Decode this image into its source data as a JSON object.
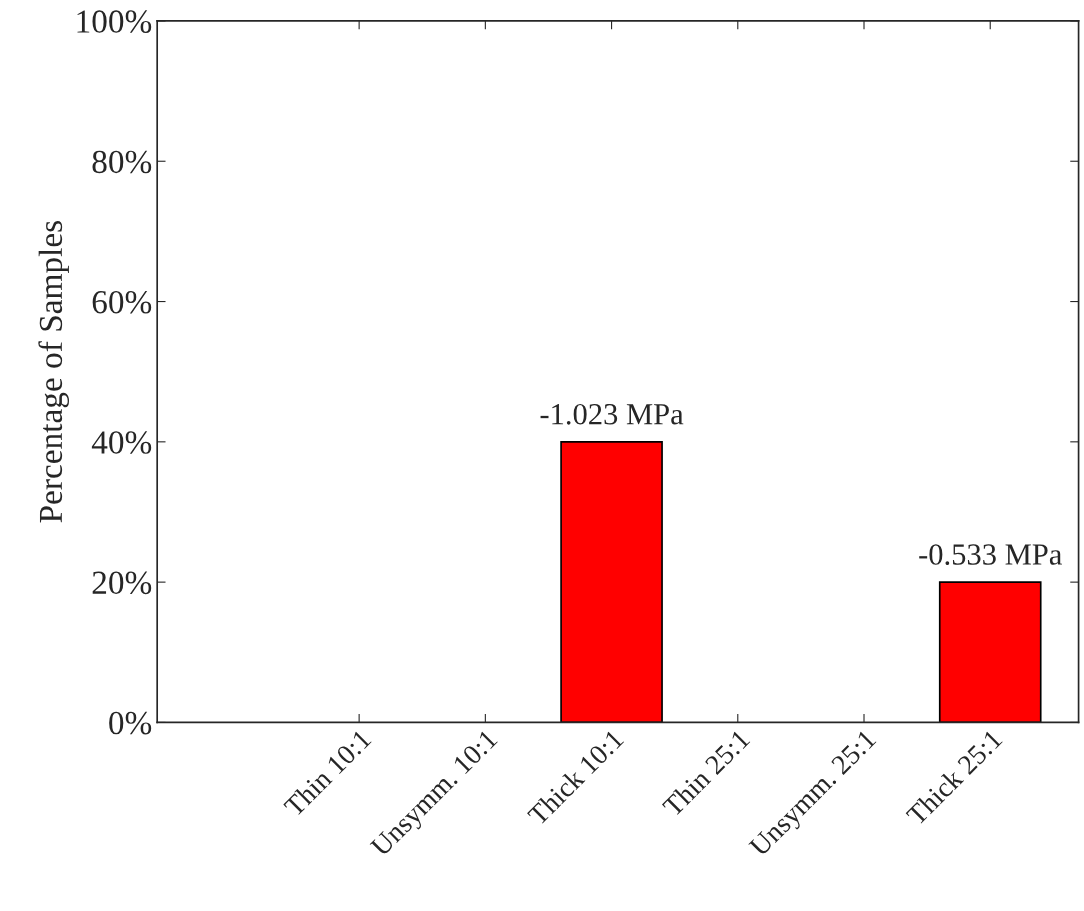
{
  "chart_data": {
    "type": "bar",
    "ylabel": "Percentage of Samples",
    "categories": [
      "Thin 10:1",
      "Unsymm. 10:1",
      "Thick 10:1",
      "Thin 25:1",
      "Unsymm. 25:1",
      "Thick 25:1"
    ],
    "values": [
      0,
      0,
      40,
      0,
      0,
      20
    ],
    "annotations": [
      {
        "text": "-1.023 MPa",
        "x": "Thick 10:1",
        "y": 40
      },
      {
        "text": "-0.533 MPa",
        "x": "Thick 25:1",
        "y": 20
      }
    ],
    "color": "#ff0000",
    "ylim": [
      0,
      100
    ],
    "yticks": [
      {
        "value": 0,
        "label": "0%"
      },
      {
        "value": 20,
        "label": "20%"
      },
      {
        "value": 40,
        "label": "40%"
      },
      {
        "value": 60,
        "label": "60%"
      },
      {
        "value": 80,
        "label": "80%"
      },
      {
        "value": 100,
        "label": "100%"
      }
    ],
    "grid": false,
    "legend": false
  }
}
